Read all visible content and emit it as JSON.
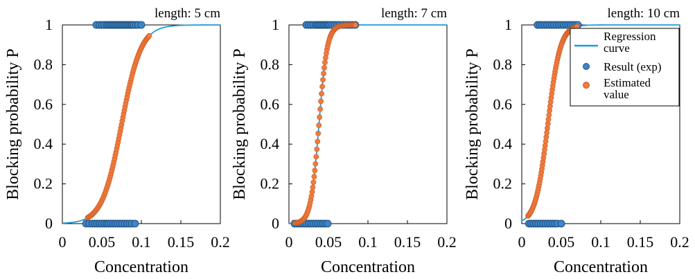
{
  "colors": {
    "regression": "#1f9bd7",
    "experimental_fill": "#3f86c8",
    "experimental_edge": "#1d4f7f",
    "estimated_fill": "#f07b3f",
    "estimated_edge": "#c85a20",
    "axis": "#000000"
  },
  "legend": {
    "regression": "Regression curve",
    "experimental": "Result (exp)",
    "estimated": "Estimated value"
  },
  "chart_data": [
    {
      "type": "scatter",
      "title": "length: 5 cm",
      "xlabel": "Concentration",
      "ylabel": "Blocking probability P",
      "xlim": [
        0,
        0.2
      ],
      "ylim": [
        0,
        1
      ],
      "xticks": [
        "0",
        "0.05",
        "0.1",
        "0.15",
        "0.2"
      ],
      "yticks": [
        "0",
        "0.2",
        "0.4",
        "0.6",
        "0.8",
        "1"
      ],
      "grid": false,
      "legend": false,
      "series": [
        {
          "name": "Regression curve",
          "kind": "line",
          "logistic": {
            "midpoint": 0.075,
            "scale": 0.0123
          },
          "x_range": [
            0,
            0.2
          ]
        },
        {
          "name": "Result (exp)",
          "kind": "scatter",
          "blocked": [
            0.043,
            0.047,
            0.05,
            0.053,
            0.056,
            0.058,
            0.06,
            0.062,
            0.064,
            0.066,
            0.068,
            0.07,
            0.072,
            0.074,
            0.076,
            0.078,
            0.08,
            0.082,
            0.084,
            0.086,
            0.088,
            0.09,
            0.093,
            0.096,
            0.1
          ],
          "not_blocked": [
            0.03,
            0.034,
            0.038,
            0.041,
            0.044,
            0.047,
            0.05,
            0.053,
            0.056,
            0.058,
            0.061,
            0.064,
            0.067,
            0.07,
            0.073,
            0.076,
            0.079,
            0.082,
            0.085,
            0.088,
            0.092
          ]
        },
        {
          "name": "Estimated value",
          "kind": "scatter",
          "x_min": 0.032,
          "x_max": 0.11,
          "count": 90
        }
      ]
    },
    {
      "type": "scatter",
      "title": "length: 7 cm",
      "xlabel": "Concentration",
      "ylabel": "Blocking probability P",
      "xlim": [
        0,
        0.2
      ],
      "ylim": [
        0,
        1
      ],
      "xticks": [
        "0",
        "0.05",
        "0.1",
        "0.15",
        "0.2"
      ],
      "yticks": [
        "0",
        "0.2",
        "0.4",
        "0.6",
        "0.8",
        "1"
      ],
      "grid": false,
      "legend": false,
      "series": [
        {
          "name": "Regression curve",
          "kind": "line",
          "logistic": {
            "midpoint": 0.038,
            "scale": 0.0052
          },
          "x_range": [
            0,
            0.2
          ]
        },
        {
          "name": "Result (exp)",
          "kind": "scatter",
          "blocked": [
            0.022,
            0.025,
            0.028,
            0.031,
            0.034,
            0.036,
            0.038,
            0.04,
            0.042,
            0.044,
            0.046,
            0.048,
            0.05,
            0.052,
            0.055,
            0.058,
            0.061,
            0.064,
            0.068,
            0.072,
            0.076,
            0.08,
            0.084
          ],
          "not_blocked": [
            0.007,
            0.01,
            0.013,
            0.016,
            0.019,
            0.022,
            0.025,
            0.028,
            0.031,
            0.034,
            0.037,
            0.04,
            0.043,
            0.046,
            0.049
          ]
        },
        {
          "name": "Estimated value",
          "kind": "scatter",
          "x_min": 0.008,
          "x_max": 0.084,
          "count": 90
        }
      ]
    },
    {
      "type": "scatter",
      "title": "length: 10 cm",
      "xlabel": "Concentration",
      "ylabel": "Blocking probability P",
      "xlim": [
        0,
        0.2
      ],
      "ylim": [
        0,
        1
      ],
      "xticks": [
        "0",
        "0.05",
        "0.1",
        "0.15",
        "0.2"
      ],
      "yticks": [
        "0",
        "0.2",
        "0.4",
        "0.6",
        "0.8",
        "1"
      ],
      "grid": false,
      "legend": true,
      "legend_position": "top-right",
      "series": [
        {
          "name": "Regression curve",
          "kind": "line",
          "logistic": {
            "midpoint": 0.033,
            "scale": 0.0078
          },
          "x_range": [
            0,
            0.2
          ]
        },
        {
          "name": "Result (exp)",
          "kind": "scatter",
          "blocked": [
            0.02,
            0.023,
            0.026,
            0.029,
            0.032,
            0.035,
            0.038,
            0.041,
            0.044,
            0.047,
            0.05,
            0.053,
            0.056,
            0.059,
            0.062,
            0.065,
            0.068,
            0.071
          ],
          "not_blocked": [
            0.009,
            0.012,
            0.015,
            0.018,
            0.021,
            0.024,
            0.027,
            0.03,
            0.033,
            0.036,
            0.039,
            0.042,
            0.045,
            0.05
          ]
        },
        {
          "name": "Estimated value",
          "kind": "scatter",
          "x_min": 0.008,
          "x_max": 0.07,
          "count": 90
        }
      ]
    }
  ]
}
